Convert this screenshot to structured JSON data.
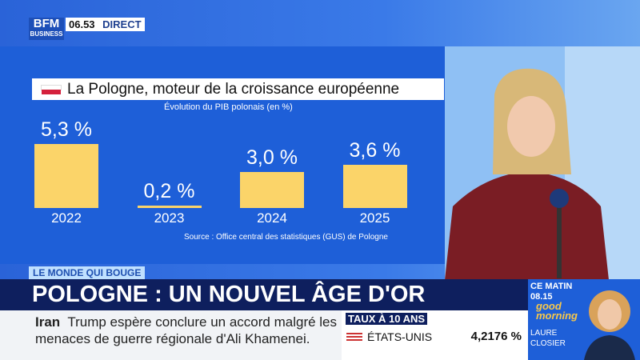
{
  "header": {
    "logo_top": "BFM",
    "logo_bottom": "BUSINESS",
    "time": "06.53",
    "live": "DIRECT"
  },
  "chart_data": {
    "type": "bar",
    "title": "La Pologne, moteur de la croissance européenne",
    "subtitle": "Évolution du PIB polonais (en %)",
    "categories": [
      "2022",
      "2023",
      "2024",
      "2025"
    ],
    "values": [
      5.3,
      0.2,
      3.0,
      3.6
    ],
    "value_labels": [
      "5,3 %",
      "0,2 %",
      "3,0 %",
      "3,6 %"
    ],
    "color": "#fbd469",
    "source": "Source : Office central des statistiques (GUS) de Pologne"
  },
  "banner": {
    "tag": "LE MONDE QUI BOUGE",
    "headline": "POLOGNE : UN NOUVEL ÂGE D'OR"
  },
  "ticker": {
    "topic": "Iran",
    "text": "Trump espère conclure un accord malgré les menaces de guerre régionale d'Ali Khamenei."
  },
  "rates": {
    "title": "TAUX À 10 ANS",
    "country": "ÉTATS-UNIS",
    "value": "4,2176 %"
  },
  "next_show": {
    "when": "CE MATIN",
    "time": "08.15",
    "show_top": "good",
    "show_bottom": "morning",
    "host_first": "LAURE",
    "host_last": "CLOSIER"
  }
}
